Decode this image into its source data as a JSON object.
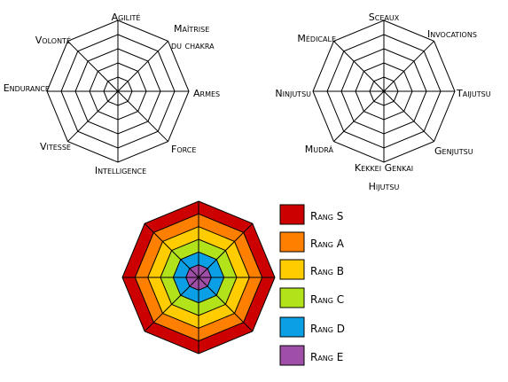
{
  "radar_left": {
    "axes": [
      "Agilité",
      "Maîtrise du chakra",
      "Armes",
      "Force",
      "Intelligence",
      "Vitesse",
      "Endurance",
      "Volonté"
    ],
    "rings": 5,
    "grid_color": "#000000"
  },
  "radar_right": {
    "axes": [
      "Sceaux",
      "Invocations",
      "Taijutsu",
      "Genjutsu",
      "Kekkei Genkai",
      "Mudrâ",
      "Ninjutsu",
      "Médicale"
    ],
    "extra_label": "Hijutsu",
    "rings": 5,
    "grid_color": "#000000"
  },
  "legend": {
    "items": [
      {
        "label": "Rang S",
        "color": "#cc0000"
      },
      {
        "label": "Rang A",
        "color": "#ff8000"
      },
      {
        "label": "Rang B",
        "color": "#ffcc00"
      },
      {
        "label": "Rang C",
        "color": "#b2e31a"
      },
      {
        "label": "Rang D",
        "color": "#0ba0e6"
      },
      {
        "label": "Rang E",
        "color": "#a04fa8"
      }
    ]
  }
}
